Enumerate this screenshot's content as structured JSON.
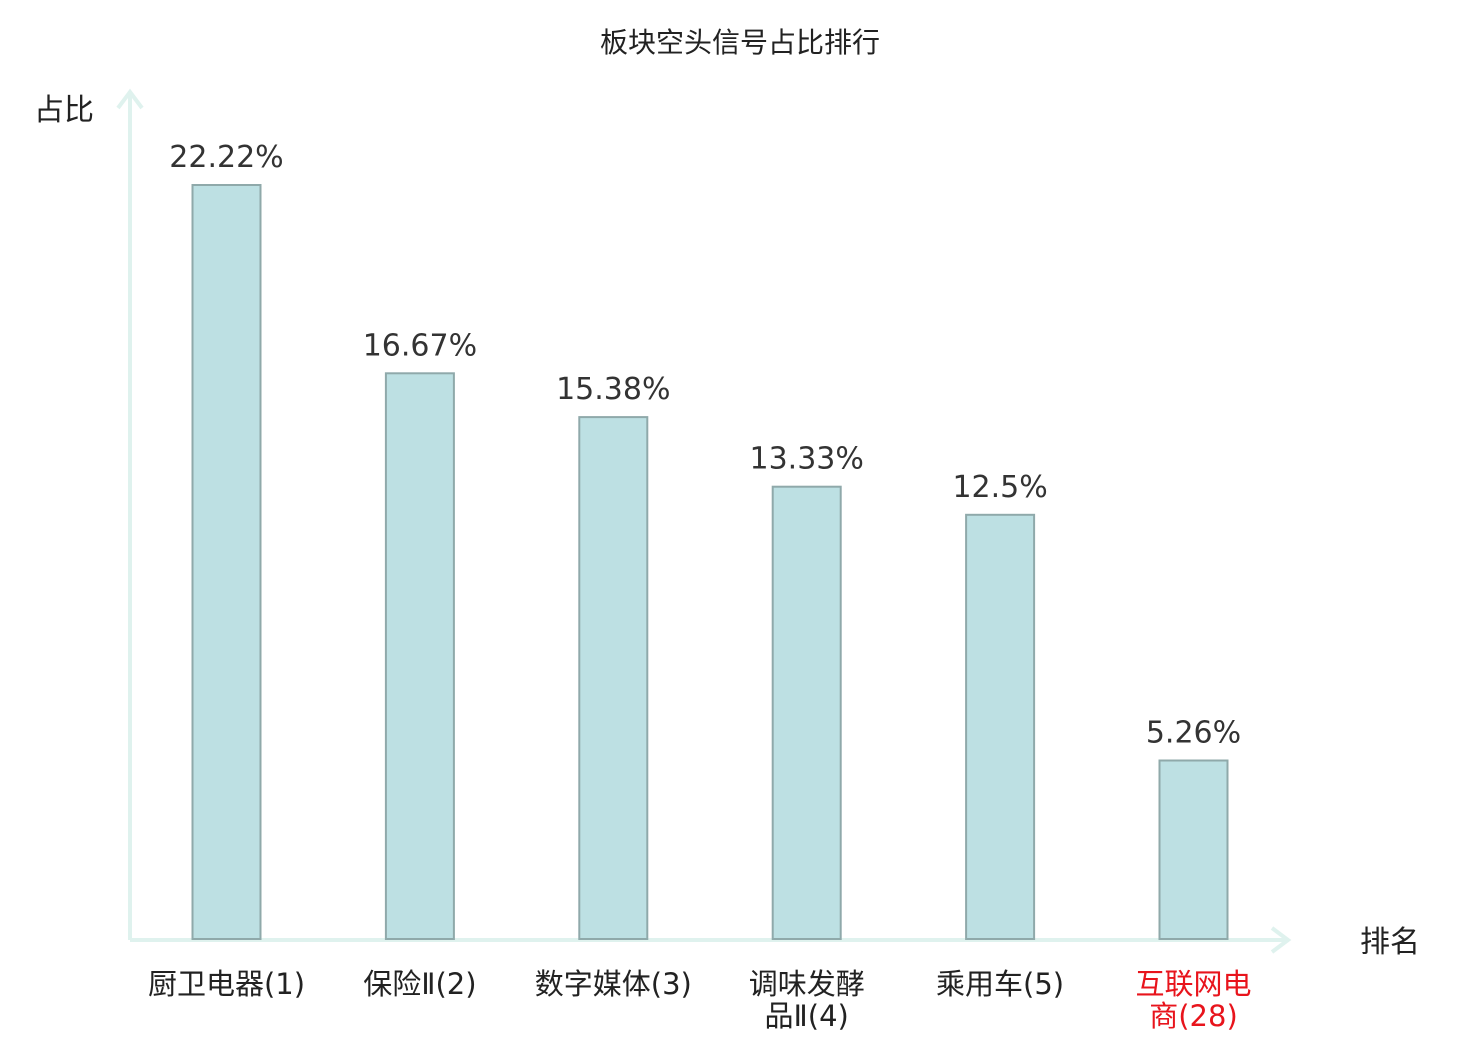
{
  "chart_data": {
    "type": "bar",
    "title": "板块空头信号占比排行",
    "ylabel": "占比",
    "xlabel": "排名",
    "categories": [
      [
        "厨卫电器(1)"
      ],
      [
        "保险Ⅱ(2)"
      ],
      [
        "数字媒体(3)"
      ],
      [
        "调味发酵",
        "品Ⅱ(4)"
      ],
      [
        "乘用车(5)"
      ],
      [
        "互联网电",
        "商(28)"
      ]
    ],
    "values": [
      22.22,
      16.67,
      15.38,
      13.33,
      12.5,
      5.26
    ],
    "value_labels": [
      "22.22%",
      "16.67%",
      "15.38%",
      "13.33%",
      "12.5%",
      "5.26%"
    ],
    "highlight_index": 5,
    "ylim": [
      0,
      22.22
    ],
    "grid": false,
    "colors": {
      "bar_fill": "#bde0e3",
      "bar_stroke": "#8fa9aa",
      "axis": "#dff2ee",
      "highlight_text": "#e8141c"
    }
  }
}
